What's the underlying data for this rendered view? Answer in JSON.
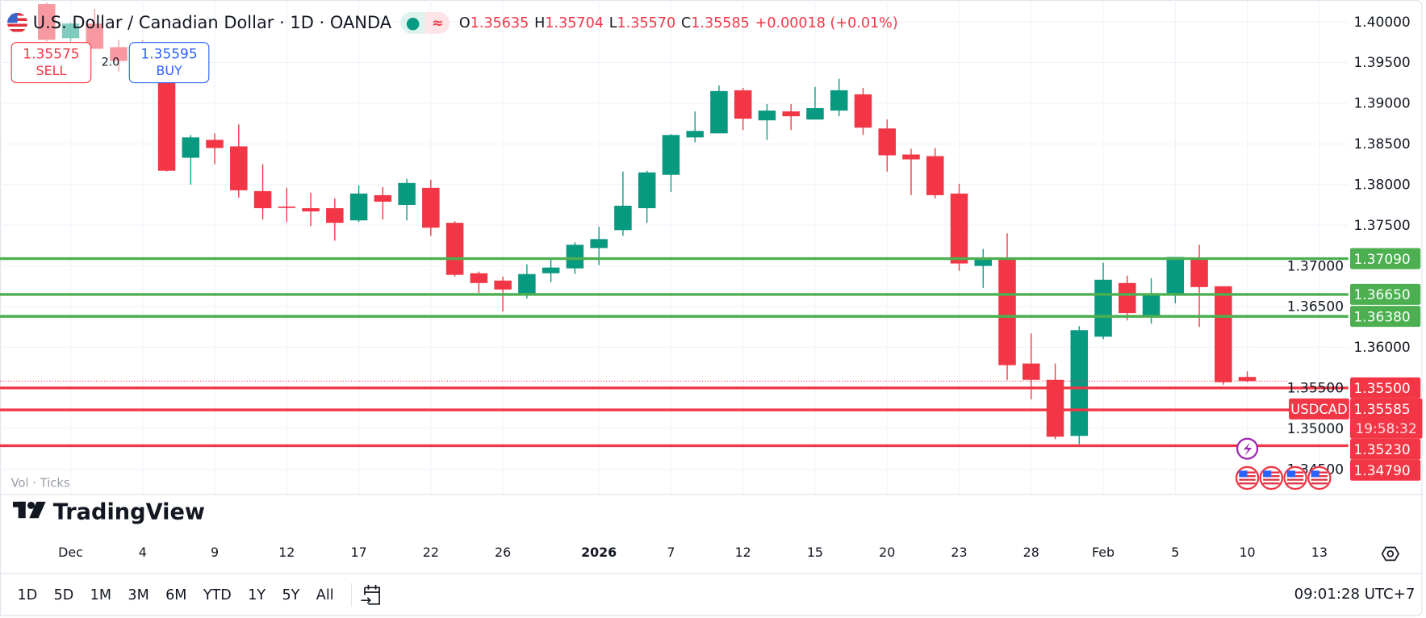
{
  "header": {
    "title": "U.S. Dollar / Canadian Dollar · 1D · OANDA",
    "flag_icon": "us-canada-flag-icon",
    "market_status_icon": "green-dot",
    "indicator_icon": "approx-wave-icon",
    "open_label": "O",
    "open": "1.35635",
    "high_label": "H",
    "high": "1.35704",
    "low_label": "L",
    "low": "1.35570",
    "close_label": "C",
    "close": "1.35585",
    "change": "+0.00018 (+0.01%)"
  },
  "trade": {
    "sell_price": "1.35575",
    "sell_label": "SELL",
    "buy_price": "1.35595",
    "buy_label": "BUY",
    "spread": "2.0"
  },
  "colors": {
    "up": "#089981",
    "down": "#f23645",
    "support": "#4caf50",
    "resistance": "#f23645",
    "buy": "#2962ff"
  },
  "chart_data": {
    "type": "candlestick",
    "symbol": "USDCAD",
    "interval": "1D",
    "ylim": [
      1.343,
      1.4025
    ],
    "grid": true,
    "y_ticks": [
      "1.40000",
      "1.39500",
      "1.39000",
      "1.38500",
      "1.38000",
      "1.37500",
      "1.37000",
      "1.36500",
      "1.36000",
      "1.35500",
      "1.35000",
      "1.34500"
    ],
    "candles": [
      {
        "date": "2025-11-28",
        "o": 1.4022,
        "h": 1.4024,
        "l": 1.3976,
        "c": 1.3978
      },
      {
        "date": "2025-12-01",
        "o": 1.398,
        "h": 1.3999,
        "l": 1.3975,
        "c": 1.3998
      },
      {
        "date": "2025-12-02",
        "o": 1.3998,
        "h": 1.4016,
        "l": 1.3967,
        "c": 1.3967
      },
      {
        "date": "2025-12-03",
        "o": 1.3969,
        "h": 1.3978,
        "l": 1.3939,
        "c": 1.3952
      },
      {
        "date": "2025-12-04",
        "o": 1.3952,
        "h": 1.3978,
        "l": 1.3942,
        "c": 1.3946
      },
      {
        "date": "2025-12-05",
        "o": 1.3939,
        "h": 1.3943,
        "l": 1.3816,
        "c": 1.3817
      },
      {
        "date": "2025-12-08",
        "o": 1.3833,
        "h": 1.3861,
        "l": 1.38,
        "c": 1.3858
      },
      {
        "date": "2025-12-09",
        "o": 1.3855,
        "h": 1.3863,
        "l": 1.3825,
        "c": 1.3845
      },
      {
        "date": "2025-12-10",
        "o": 1.3847,
        "h": 1.3874,
        "l": 1.3784,
        "c": 1.3793
      },
      {
        "date": "2025-12-11",
        "o": 1.3792,
        "h": 1.3825,
        "l": 1.3757,
        "c": 1.3771
      },
      {
        "date": "2025-12-12",
        "o": 1.3773,
        "h": 1.3796,
        "l": 1.3754,
        "c": 1.3772
      },
      {
        "date": "2025-12-15",
        "o": 1.3771,
        "h": 1.379,
        "l": 1.3749,
        "c": 1.3767
      },
      {
        "date": "2025-12-16",
        "o": 1.3771,
        "h": 1.3783,
        "l": 1.3731,
        "c": 1.3753
      },
      {
        "date": "2025-12-17",
        "o": 1.3756,
        "h": 1.3799,
        "l": 1.3754,
        "c": 1.3789
      },
      {
        "date": "2025-12-18",
        "o": 1.3787,
        "h": 1.3797,
        "l": 1.3757,
        "c": 1.3779
      },
      {
        "date": "2025-12-19",
        "o": 1.3775,
        "h": 1.3807,
        "l": 1.3756,
        "c": 1.3802
      },
      {
        "date": "2025-12-22",
        "o": 1.3796,
        "h": 1.3806,
        "l": 1.3737,
        "c": 1.3747
      },
      {
        "date": "2025-12-23",
        "o": 1.3753,
        "h": 1.3755,
        "l": 1.3687,
        "c": 1.3689
      },
      {
        "date": "2025-12-24",
        "o": 1.3691,
        "h": 1.3693,
        "l": 1.3667,
        "c": 1.3679
      },
      {
        "date": "2025-12-26",
        "o": 1.3682,
        "h": 1.3687,
        "l": 1.3644,
        "c": 1.3671
      },
      {
        "date": "2025-12-29",
        "o": 1.3665,
        "h": 1.3702,
        "l": 1.366,
        "c": 1.369
      },
      {
        "date": "2025-12-30",
        "o": 1.3691,
        "h": 1.3708,
        "l": 1.368,
        "c": 1.3698
      },
      {
        "date": "2025-12-31",
        "o": 1.3697,
        "h": 1.3729,
        "l": 1.369,
        "c": 1.3726
      },
      {
        "date": "2026-01-02",
        "o": 1.3722,
        "h": 1.3748,
        "l": 1.3701,
        "c": 1.3733
      },
      {
        "date": "2026-01-05",
        "o": 1.3744,
        "h": 1.3816,
        "l": 1.3737,
        "c": 1.3774
      },
      {
        "date": "2026-01-06",
        "o": 1.3771,
        "h": 1.3817,
        "l": 1.3753,
        "c": 1.3815
      },
      {
        "date": "2026-01-07",
        "o": 1.3812,
        "h": 1.3862,
        "l": 1.3791,
        "c": 1.3861
      },
      {
        "date": "2026-01-08",
        "o": 1.3858,
        "h": 1.389,
        "l": 1.3852,
        "c": 1.3866
      },
      {
        "date": "2026-01-09",
        "o": 1.3863,
        "h": 1.3922,
        "l": 1.3863,
        "c": 1.3915
      },
      {
        "date": "2026-01-12",
        "o": 1.3916,
        "h": 1.3919,
        "l": 1.3867,
        "c": 1.3881
      },
      {
        "date": "2026-01-13",
        "o": 1.3879,
        "h": 1.3899,
        "l": 1.3855,
        "c": 1.3891
      },
      {
        "date": "2026-01-14",
        "o": 1.389,
        "h": 1.3899,
        "l": 1.3867,
        "c": 1.3884
      },
      {
        "date": "2026-01-15",
        "o": 1.388,
        "h": 1.392,
        "l": 1.388,
        "c": 1.3894
      },
      {
        "date": "2026-01-16",
        "o": 1.3891,
        "h": 1.393,
        "l": 1.3884,
        "c": 1.3916
      },
      {
        "date": "2026-01-19",
        "o": 1.3911,
        "h": 1.3919,
        "l": 1.3861,
        "c": 1.387
      },
      {
        "date": "2026-01-20",
        "o": 1.3869,
        "h": 1.388,
        "l": 1.3816,
        "c": 1.3836
      },
      {
        "date": "2026-01-21",
        "o": 1.3837,
        "h": 1.3844,
        "l": 1.3787,
        "c": 1.3831
      },
      {
        "date": "2026-01-22",
        "o": 1.3835,
        "h": 1.3845,
        "l": 1.3783,
        "c": 1.3787
      },
      {
        "date": "2026-01-23",
        "o": 1.3789,
        "h": 1.3801,
        "l": 1.3694,
        "c": 1.3703
      },
      {
        "date": "2026-01-26",
        "o": 1.37,
        "h": 1.3721,
        "l": 1.3673,
        "c": 1.3709
      },
      {
        "date": "2026-01-27",
        "o": 1.3708,
        "h": 1.374,
        "l": 1.356,
        "c": 1.3578
      },
      {
        "date": "2026-01-28",
        "o": 1.358,
        "h": 1.3617,
        "l": 1.3536,
        "c": 1.356
      },
      {
        "date": "2026-01-29",
        "o": 1.356,
        "h": 1.358,
        "l": 1.3487,
        "c": 1.349
      },
      {
        "date": "2026-01-30",
        "o": 1.3491,
        "h": 1.3626,
        "l": 1.3481,
        "c": 1.3621
      },
      {
        "date": "2026-02-02",
        "o": 1.3613,
        "h": 1.3704,
        "l": 1.361,
        "c": 1.3683
      },
      {
        "date": "2026-02-03",
        "o": 1.3679,
        "h": 1.3688,
        "l": 1.3633,
        "c": 1.3642
      },
      {
        "date": "2026-02-04",
        "o": 1.3638,
        "h": 1.3685,
        "l": 1.3629,
        "c": 1.3664
      },
      {
        "date": "2026-02-05",
        "o": 1.3664,
        "h": 1.3711,
        "l": 1.3654,
        "c": 1.3711
      },
      {
        "date": "2026-02-06",
        "o": 1.3708,
        "h": 1.3726,
        "l": 1.3625,
        "c": 1.3674
      },
      {
        "date": "2026-02-09",
        "o": 1.3675,
        "h": 1.3675,
        "l": 1.3554,
        "c": 1.3557
      },
      {
        "date": "2026-02-10",
        "o": 1.35635,
        "h": 1.35704,
        "l": 1.3557,
        "c": 1.35585
      }
    ],
    "horizontal_lines": [
      {
        "price": 1.3709,
        "label": "1.37090",
        "kind": "support"
      },
      {
        "price": 1.3665,
        "label": "1.36650",
        "kind": "support"
      },
      {
        "price": 1.3638,
        "label": "1.36380",
        "kind": "support"
      },
      {
        "price": 1.355,
        "label": "1.35500",
        "kind": "resistance"
      },
      {
        "price": 1.3523,
        "label": "1.35230",
        "kind": "resistance"
      },
      {
        "price": 1.3479,
        "label": "1.34790",
        "kind": "resistance"
      }
    ],
    "current": {
      "symbol_label": "USDCAD",
      "price": 1.35585,
      "price_label": "1.35585",
      "countdown": "19:58:32"
    },
    "x_ticks": [
      {
        "label": "Dec",
        "date": "2025-12-01",
        "bold": false
      },
      {
        "label": "4",
        "date": "2025-12-04"
      },
      {
        "label": "9",
        "date": "2025-12-09"
      },
      {
        "label": "12",
        "date": "2025-12-12"
      },
      {
        "label": "17",
        "date": "2025-12-17"
      },
      {
        "label": "22",
        "date": "2025-12-22"
      },
      {
        "label": "26",
        "date": "2025-12-26"
      },
      {
        "label": "2026",
        "date": "2026-01-02",
        "bold": true
      },
      {
        "label": "7",
        "date": "2026-01-07"
      },
      {
        "label": "12",
        "date": "2026-01-12"
      },
      {
        "label": "15",
        "date": "2026-01-15"
      },
      {
        "label": "20",
        "date": "2026-01-20"
      },
      {
        "label": "23",
        "date": "2026-01-23"
      },
      {
        "label": "28",
        "date": "2026-01-28"
      },
      {
        "label": "Feb",
        "date": "2026-02-02"
      },
      {
        "label": "5",
        "date": "2026-02-05"
      },
      {
        "label": "10",
        "date": "2026-02-10"
      },
      {
        "label": "13",
        "date": "2026-02-13"
      }
    ],
    "events": {
      "lightning_icon": "earnings-lightning-icon",
      "flag_icons": [
        "us-flag-icon",
        "us-flag-icon",
        "us-flag-icon",
        "us-flag-icon"
      ]
    }
  },
  "watermark": {
    "logo_text": "TradingView",
    "overlay_text": "Vol · Ticks"
  },
  "toolbar": {
    "ranges": [
      "1D",
      "5D",
      "1M",
      "3M",
      "6M",
      "YTD",
      "1Y",
      "5Y",
      "All"
    ],
    "goto_date_icon": "calendar-arrow-icon",
    "clock": "09:01:28 UTC+7",
    "settings_icon": "gear-icon"
  }
}
